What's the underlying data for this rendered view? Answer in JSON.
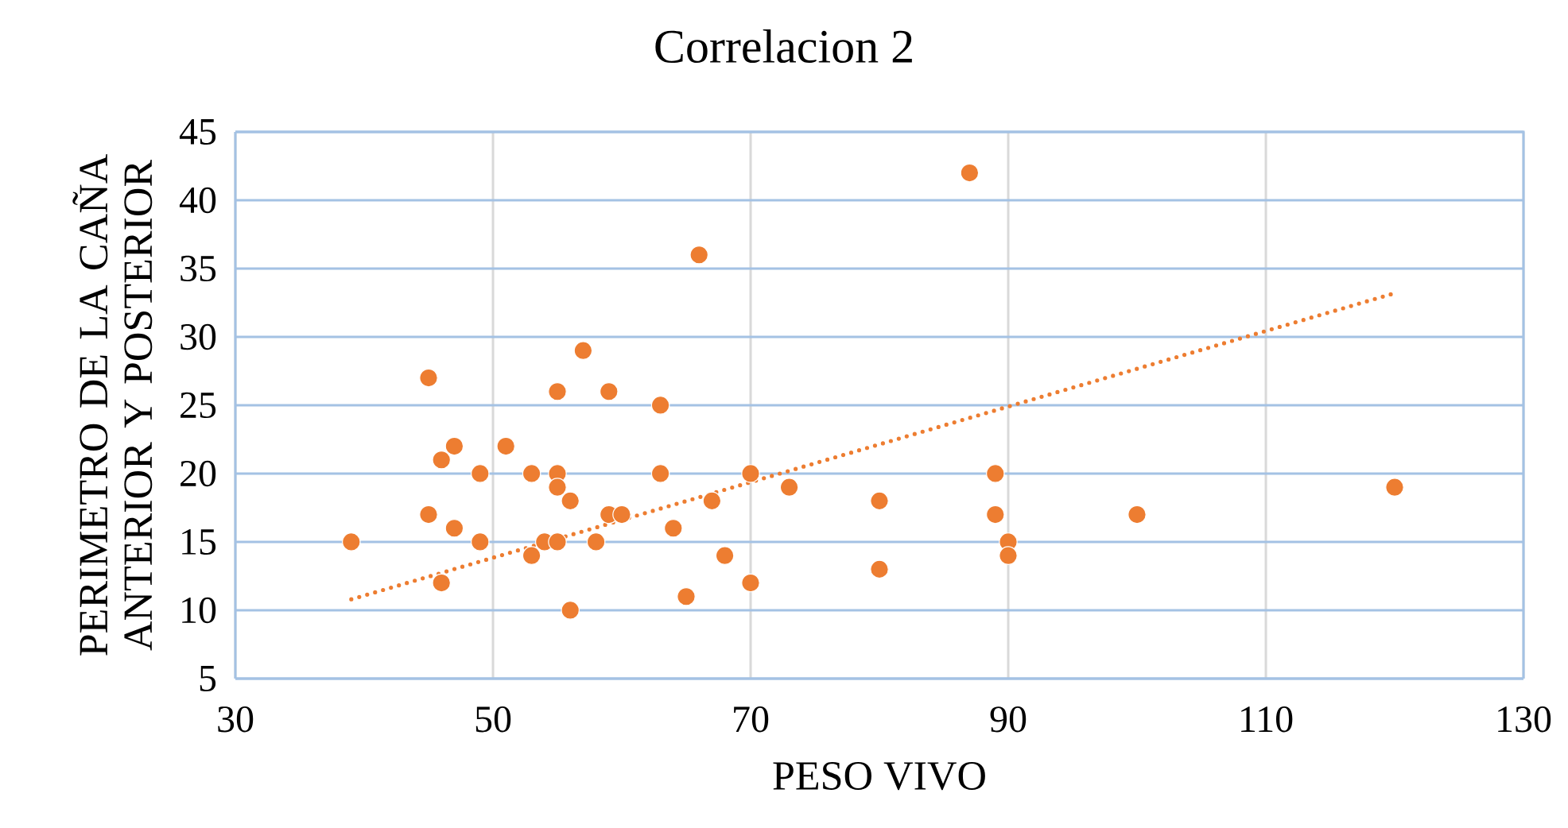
{
  "chart_data": {
    "type": "scatter",
    "title": "Correlacion 2",
    "xlabel": "PESO VIVO",
    "ylabel": "PERIMETRO DE LA CAÑA ANTERIOR Y POSTERIOR",
    "xlim": [
      30,
      130
    ],
    "ylim": [
      5,
      45
    ],
    "xticks": [
      30,
      50,
      70,
      90,
      110,
      130
    ],
    "yticks": [
      5,
      10,
      15,
      20,
      25,
      30,
      35,
      40,
      45
    ],
    "grid": true,
    "series": [
      {
        "color": "#ed7d31",
        "marker": "circle",
        "x": [
          39,
          45,
          45,
          46,
          46,
          47,
          47,
          49,
          49,
          51,
          53,
          53,
          54,
          55,
          55,
          55,
          55,
          56,
          56,
          57,
          58,
          59,
          59,
          60,
          63,
          63,
          64,
          65,
          66,
          67,
          68,
          70,
          70,
          73,
          80,
          80,
          87,
          89,
          89,
          90,
          90,
          100,
          120
        ],
        "values": [
          15,
          27,
          17,
          21,
          12,
          22,
          16,
          20,
          15,
          22,
          20,
          14,
          15,
          26,
          20,
          19,
          15,
          18,
          10,
          29,
          15,
          26,
          17,
          17,
          25,
          20,
          16,
          11,
          36,
          18,
          14,
          20,
          12,
          19,
          18,
          13,
          42,
          20,
          17,
          15,
          14,
          17,
          19
        ]
      },
      {
        "type": "line",
        "color": "#ed7d31",
        "marker": "none",
        "line_style": "dotted",
        "x": [
          39,
          120
        ],
        "values": [
          10.8,
          33.2
        ]
      }
    ]
  }
}
